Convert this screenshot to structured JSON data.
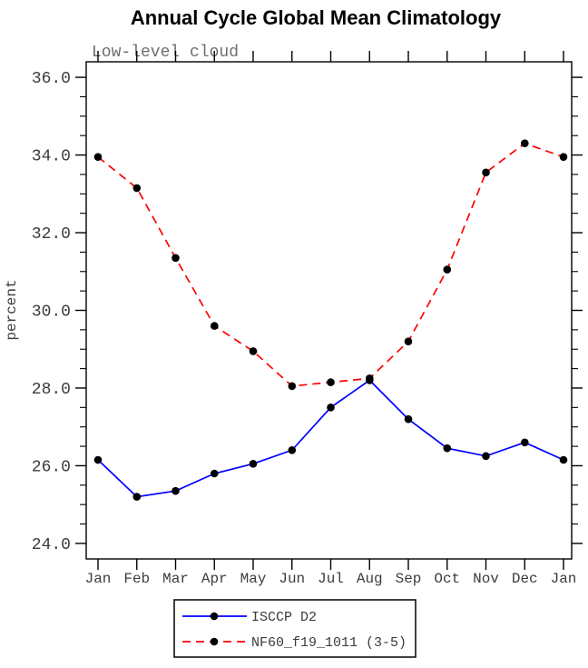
{
  "chart_data": {
    "type": "line",
    "title": "Annual Cycle Global Mean Climatology",
    "subtitle": "Low-level cloud",
    "xlabel": "",
    "ylabel": "percent",
    "categories": [
      "Jan",
      "Feb",
      "Mar",
      "Apr",
      "May",
      "Jun",
      "Jul",
      "Aug",
      "Sep",
      "Oct",
      "Nov",
      "Dec",
      "Jan"
    ],
    "ylim": [
      23.6,
      36.4
    ],
    "ytick_major": [
      24,
      26,
      28,
      30,
      32,
      34,
      36
    ],
    "ytick_labels": [
      "24.0",
      "26.0",
      "28.0",
      "30.0",
      "32.0",
      "34.0",
      "36.0"
    ],
    "ytick_minor_step": 0.5,
    "grid": false,
    "legend_position": "bottom-center",
    "series": [
      {
        "name": "ISCCP D2",
        "color": "#0000ff",
        "line_style": "solid",
        "marker": "filled-circle",
        "marker_color": "#000000",
        "values": [
          26.15,
          25.2,
          25.35,
          25.8,
          26.05,
          26.4,
          27.5,
          28.2,
          27.2,
          26.45,
          26.25,
          26.6,
          26.15
        ]
      },
      {
        "name": "NF60_f19_1011 (3-5)",
        "color": "#ff0000",
        "line_style": "dashed",
        "marker": "filled-circle",
        "marker_color": "#000000",
        "values": [
          33.95,
          33.15,
          31.35,
          29.6,
          28.95,
          28.05,
          28.15,
          28.25,
          29.2,
          31.05,
          33.55,
          34.3,
          33.95
        ]
      }
    ],
    "colors": {
      "axis": "#000000",
      "tick_label": "#3c3c3c",
      "subtitle": "#6e6e6e",
      "title": "#000000",
      "background": "#ffffff"
    }
  }
}
